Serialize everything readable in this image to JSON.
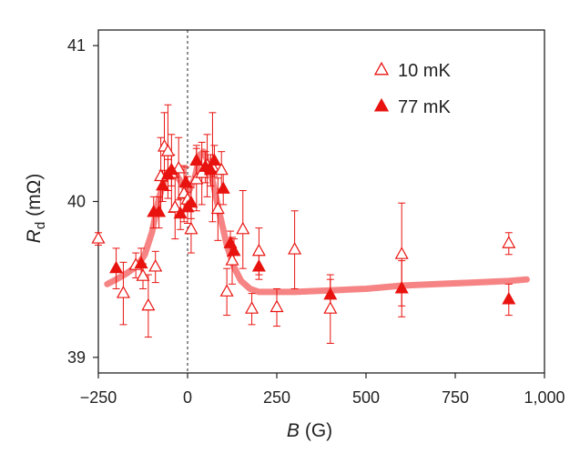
{
  "chart_data": {
    "type": "scatter",
    "xlabel": {
      "var": "B",
      "unit": "(G)"
    },
    "ylabel": {
      "var": "R",
      "sub": "d",
      "unit": "(mΩ)"
    },
    "xlim": [
      -250,
      1000
    ],
    "ylim": [
      38.9,
      41.1
    ],
    "xticks": [
      -250,
      0,
      250,
      500,
      750,
      1000
    ],
    "xtick_labels": [
      "−250",
      "0",
      "250",
      "500",
      "750",
      "1,000"
    ],
    "yticks": [
      39,
      40,
      41
    ],
    "ytick_labels": [
      "39",
      "40",
      "41"
    ],
    "zero_line": true,
    "grid": false,
    "legend_position": "top-right",
    "colors": {
      "marker": "#e8130f",
      "fit": "#f57d7d",
      "axis": "#222222"
    },
    "series": [
      {
        "name": "10 mK",
        "marker": "open-triangle",
        "points": [
          {
            "x": -250,
            "y": 39.76,
            "err": 0.04
          },
          {
            "x": -180,
            "y": 39.41,
            "err": 0.2
          },
          {
            "x": -145,
            "y": 39.59,
            "err": 0.08
          },
          {
            "x": -125,
            "y": 39.52,
            "err": 0.08
          },
          {
            "x": -110,
            "y": 39.33,
            "err": 0.2
          },
          {
            "x": -90,
            "y": 39.58,
            "err": 0.1
          },
          {
            "x": -75,
            "y": 40.16,
            "err": 0.25
          },
          {
            "x": -65,
            "y": 40.35,
            "err": 0.22
          },
          {
            "x": -55,
            "y": 40.32,
            "err": 0.3
          },
          {
            "x": -45,
            "y": 40.18,
            "err": 0.25
          },
          {
            "x": -35,
            "y": 39.96,
            "err": 0.2
          },
          {
            "x": -25,
            "y": 40.21,
            "err": 0.2
          },
          {
            "x": -10,
            "y": 40.05,
            "err": 0.18
          },
          {
            "x": 0,
            "y": 40.01,
            "err": 0.15
          },
          {
            "x": 10,
            "y": 39.82,
            "err": 0.15
          },
          {
            "x": 25,
            "y": 40.14,
            "err": 0.2
          },
          {
            "x": 40,
            "y": 40.18,
            "err": 0.2
          },
          {
            "x": 55,
            "y": 40.23,
            "err": 0.2
          },
          {
            "x": 70,
            "y": 40.22,
            "err": 0.35
          },
          {
            "x": 85,
            "y": 39.95,
            "err": 0.2
          },
          {
            "x": 95,
            "y": 40.2,
            "err": 0.12
          },
          {
            "x": 110,
            "y": 39.42,
            "err": 0.15
          },
          {
            "x": 125,
            "y": 39.62,
            "err": 0.15
          },
          {
            "x": 155,
            "y": 39.82,
            "err": 0.25
          },
          {
            "x": 180,
            "y": 39.31,
            "err": 0.1
          },
          {
            "x": 200,
            "y": 39.68,
            "err": 0.15
          },
          {
            "x": 250,
            "y": 39.32,
            "err": 0.12
          },
          {
            "x": 300,
            "y": 39.69,
            "err": 0.25
          },
          {
            "x": 400,
            "y": 39.31,
            "err": 0.22
          },
          {
            "x": 600,
            "y": 39.66,
            "err": 0.33
          },
          {
            "x": 900,
            "y": 39.73,
            "err": 0.07
          }
        ]
      },
      {
        "name": "77 mK",
        "marker": "filled-triangle",
        "points": [
          {
            "x": -200,
            "y": 39.57,
            "err": 0.13
          },
          {
            "x": -130,
            "y": 39.6,
            "err": 0.1
          },
          {
            "x": -95,
            "y": 39.93,
            "err": 0.1
          },
          {
            "x": -80,
            "y": 39.93,
            "err": 0.1
          },
          {
            "x": -70,
            "y": 40.1,
            "err": 0.1
          },
          {
            "x": -55,
            "y": 40.17,
            "err": 0.1
          },
          {
            "x": -45,
            "y": 40.2,
            "err": 0.1
          },
          {
            "x": -20,
            "y": 39.92,
            "err": 0.1
          },
          {
            "x": -5,
            "y": 40.12,
            "err": 0.1
          },
          {
            "x": 0,
            "y": 39.96,
            "err": 0.1
          },
          {
            "x": 10,
            "y": 39.99,
            "err": 0.1
          },
          {
            "x": 25,
            "y": 40.26,
            "err": 0.1
          },
          {
            "x": 50,
            "y": 40.22,
            "err": 0.1
          },
          {
            "x": 65,
            "y": 40.2,
            "err": 0.1
          },
          {
            "x": 75,
            "y": 40.26,
            "err": 0.1
          },
          {
            "x": 100,
            "y": 40.08,
            "err": 0.1
          },
          {
            "x": 120,
            "y": 39.73,
            "err": 0.08
          },
          {
            "x": 130,
            "y": 39.68,
            "err": 0.08
          },
          {
            "x": 200,
            "y": 39.58,
            "err": 0.08
          },
          {
            "x": 400,
            "y": 39.4,
            "err": 0.1
          },
          {
            "x": 600,
            "y": 39.44,
            "err": 0.18
          },
          {
            "x": 900,
            "y": 39.37,
            "err": 0.1
          }
        ]
      }
    ],
    "fit_curve": {
      "x": [
        -225,
        -200,
        -170,
        -140,
        -120,
        -100,
        -80,
        -60,
        -40,
        -20,
        0,
        20,
        35,
        45,
        60,
        75,
        90,
        110,
        130,
        150,
        175,
        200,
        250,
        300,
        400,
        500,
        600,
        700,
        800,
        900,
        950
      ],
      "y": [
        39.47,
        39.5,
        39.54,
        39.59,
        39.66,
        39.8,
        40.02,
        40.18,
        40.2,
        40.13,
        40.05,
        40.15,
        40.3,
        40.32,
        40.24,
        40.08,
        39.92,
        39.72,
        39.58,
        39.49,
        39.44,
        39.42,
        39.42,
        39.42,
        39.43,
        39.44,
        39.46,
        39.47,
        39.48,
        39.49,
        39.5
      ]
    }
  }
}
